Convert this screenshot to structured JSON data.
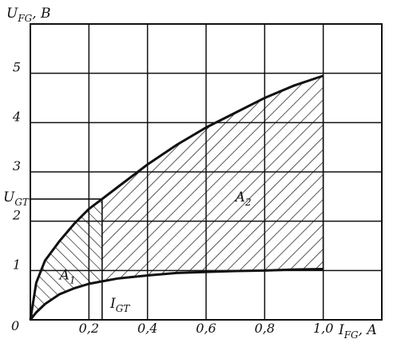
{
  "chart_data": {
    "type": "area",
    "xlim": [
      0,
      1.2
    ],
    "ylim": [
      0,
      6
    ],
    "grid": true,
    "x_ticks": [
      {
        "value": 0,
        "label": ""
      },
      {
        "value": 0.2,
        "label": "0,2"
      },
      {
        "value": 0.4,
        "label": "0,4"
      },
      {
        "value": 0.6,
        "label": "0,6"
      },
      {
        "value": 0.8,
        "label": "0,8"
      },
      {
        "value": 1.0,
        "label": "1,0"
      }
    ],
    "y_ticks": [
      {
        "value": 1,
        "label": "1"
      },
      {
        "value": 2,
        "label": "2"
      },
      {
        "value": 3,
        "label": "3"
      },
      {
        "value": 4,
        "label": "4"
      },
      {
        "value": 5,
        "label": "5"
      }
    ],
    "origin_label": "0",
    "ylabel": {
      "main": "U",
      "sub": "FG",
      "suffix": ", B"
    },
    "xlabel": {
      "main": "I",
      "sub": "FG",
      "suffix": ", A"
    },
    "markers": {
      "x": {
        "main": "I",
        "sub": "GT",
        "value": 0.245
      },
      "y": {
        "main": "U",
        "sub": "GT",
        "value": 2.45
      }
    },
    "series": [
      {
        "key": "upper",
        "x": [
          0,
          0.02,
          0.05,
          0.1,
          0.15,
          0.2,
          0.245,
          0.3,
          0.4,
          0.5,
          0.6,
          0.7,
          0.8,
          0.9,
          1.0
        ],
        "y": [
          0,
          0.75,
          1.2,
          1.6,
          1.95,
          2.25,
          2.45,
          2.7,
          3.15,
          3.55,
          3.9,
          4.2,
          4.5,
          4.75,
          4.95
        ]
      },
      {
        "key": "lower",
        "x": [
          0,
          0.02,
          0.05,
          0.1,
          0.15,
          0.2,
          0.245,
          0.3,
          0.4,
          0.5,
          0.6,
          0.7,
          0.8,
          0.9,
          1.0
        ],
        "y": [
          0,
          0.15,
          0.32,
          0.52,
          0.64,
          0.73,
          0.78,
          0.84,
          0.9,
          0.95,
          0.97,
          0.99,
          1.0,
          1.02,
          1.03
        ]
      }
    ],
    "regions": [
      {
        "key": "a1",
        "main": "A",
        "sub": "1",
        "x_range": [
          0,
          0.245
        ],
        "label_at": [
          0.1,
          0.82
        ]
      },
      {
        "key": "a2",
        "main": "A",
        "sub": "2",
        "x_range": [
          0.245,
          1.0
        ],
        "label_at": [
          0.7,
          2.4
        ]
      }
    ]
  }
}
